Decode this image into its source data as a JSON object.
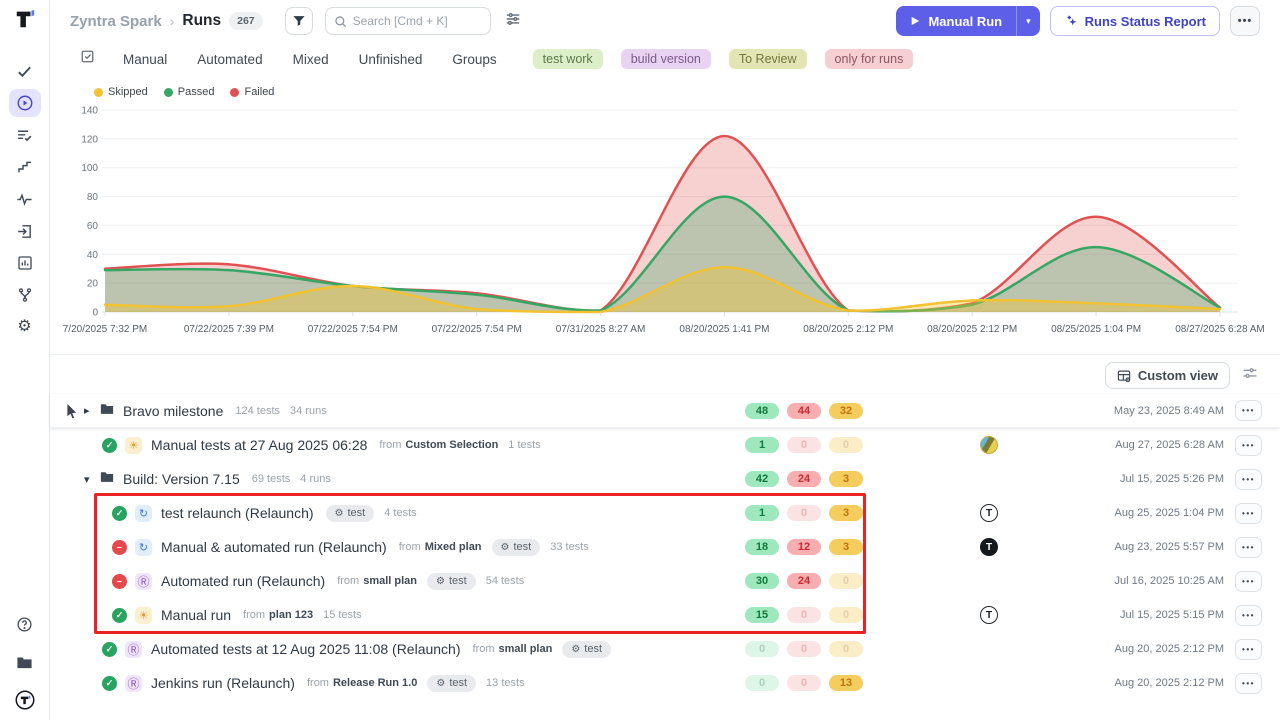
{
  "header": {
    "breadcrumb_project": "Zyntra Spark",
    "breadcrumb_sep": "›",
    "breadcrumb_page": "Runs",
    "count": "267",
    "search_placeholder": "Search [Cmd + K]",
    "manual_run_label": "Manual Run",
    "runs_status_report_label": "Runs Status Report",
    "more_label": "•••"
  },
  "filters": {
    "tabs": [
      "Manual",
      "Automated",
      "Mixed",
      "Unfinished",
      "Groups"
    ],
    "tags": [
      {
        "label": "test work",
        "bg": "#dcefc8",
        "fg": "#5a7a4a"
      },
      {
        "label": "build version",
        "bg": "#e9d3f2",
        "fg": "#7a5a8a"
      },
      {
        "label": "To Review",
        "bg": "#e3e6b4",
        "fg": "#73763d"
      },
      {
        "label": "only for runs",
        "bg": "#f6cfd3",
        "fg": "#8e565e"
      }
    ]
  },
  "chart_data": {
    "type": "area",
    "x_labels": [
      "7/20/2025 7:32 PM",
      "07/22/2025 7:39 PM",
      "07/22/2025 7:54 PM",
      "07/22/2025 7:54 PM",
      "07/31/2025 8:27 AM",
      "08/20/2025 1:41 PM",
      "08/20/2025 2:12 PM",
      "08/20/2025 2:12 PM",
      "08/25/2025 1:04 PM",
      "08/27/2025 6:28 AM"
    ],
    "series": [
      {
        "name": "Failed",
        "color": "#e05252",
        "fill_opacity": 0.27,
        "values": [
          30,
          33,
          18,
          13,
          1,
          122,
          1,
          6,
          66,
          3
        ]
      },
      {
        "name": "Passed",
        "color": "#34a765",
        "fill_opacity": 0.3,
        "values": [
          29,
          29,
          18,
          12,
          1,
          80,
          1,
          5,
          45,
          3
        ]
      },
      {
        "name": "Skipped",
        "color": "#f2c230",
        "fill_opacity": 0.38,
        "values": [
          5,
          4,
          18,
          2,
          0,
          31,
          1,
          8,
          6,
          2
        ]
      }
    ],
    "legend": [
      {
        "label": "Skipped",
        "color": "#f2c230"
      },
      {
        "label": "Passed",
        "color": "#34a765"
      },
      {
        "label": "Failed",
        "color": "#e05252"
      }
    ],
    "ylim": [
      0,
      140
    ],
    "yticks": [
      0,
      20,
      40,
      60,
      80,
      100,
      120,
      140
    ],
    "grid": true,
    "legend_position": "top-left"
  },
  "toolbar": {
    "custom_view_label": "Custom view"
  },
  "table": {
    "rows": [
      {
        "kind": "folder",
        "expander": "collapsed",
        "cursor": true,
        "hover": true,
        "title": "Bravo milestone",
        "tests_meta": "124 tests",
        "runs_meta": "34 runs",
        "badges": [
          {
            "tone": "green",
            "value": "48",
            "solid": true
          },
          {
            "tone": "red",
            "value": "44",
            "solid": true
          },
          {
            "tone": "yellow",
            "value": "32",
            "solid": true
          }
        ],
        "date": "May 23, 2025 8:49 AM"
      },
      {
        "kind": "run",
        "status": "passed",
        "run_type": "manual",
        "title": "Manual tests at 27 Aug 2025 06:28",
        "from": "Custom Selection",
        "tests_text": "1 tests",
        "badges": [
          {
            "tone": "green",
            "value": "1",
            "solid": true
          },
          {
            "tone": "red",
            "value": "0",
            "solid": false
          },
          {
            "tone": "yellow",
            "value": "0",
            "solid": false
          }
        ],
        "avatar": "photo",
        "date": "Aug 27, 2025 6:28 AM"
      },
      {
        "kind": "folder",
        "expander": "expanded",
        "title": "Build: Version 7.15",
        "tests_meta": "69 tests",
        "runs_meta": "4 runs",
        "badges": [
          {
            "tone": "green",
            "value": "42",
            "solid": true
          },
          {
            "tone": "red",
            "value": "24",
            "solid": true
          },
          {
            "tone": "yellow",
            "value": "3",
            "solid": true
          }
        ],
        "date": "Jul 15, 2025 5:26 PM"
      },
      {
        "kind": "run",
        "indent": true,
        "status": "passed",
        "run_type": "mixed",
        "title": "test relaunch (Relaunch)",
        "tag": "test",
        "tests_text": "4 tests",
        "badges": [
          {
            "tone": "green",
            "value": "1",
            "solid": true
          },
          {
            "tone": "red",
            "value": "0",
            "solid": false
          },
          {
            "tone": "yellow",
            "value": "3",
            "solid": true
          }
        ],
        "avatar": "t-light",
        "date": "Aug 25, 2025 1:04 PM"
      },
      {
        "kind": "run",
        "indent": true,
        "status": "failed",
        "run_type": "mixed",
        "title": "Manual & automated run (Relaunch)",
        "from": "Mixed plan",
        "tag": "test",
        "tests_text": "33 tests",
        "badges": [
          {
            "tone": "green",
            "value": "18",
            "solid": true
          },
          {
            "tone": "red",
            "value": "12",
            "solid": true
          },
          {
            "tone": "yellow",
            "value": "3",
            "solid": true
          }
        ],
        "avatar": "t-dark",
        "date": "Aug 23, 2025 5:57 PM"
      },
      {
        "kind": "run",
        "indent": true,
        "status": "failed",
        "run_type": "automated",
        "title": "Automated run (Relaunch)",
        "from": "small plan",
        "tag": "test",
        "tests_text": "54 tests",
        "badges": [
          {
            "tone": "green",
            "value": "30",
            "solid": true
          },
          {
            "tone": "red",
            "value": "24",
            "solid": true
          },
          {
            "tone": "yellow",
            "value": "0",
            "solid": false
          }
        ],
        "date": "Jul 16, 2025 10:25 AM"
      },
      {
        "kind": "run",
        "indent": true,
        "status": "passed",
        "run_type": "manual",
        "title": "Manual run",
        "from": "plan 123",
        "tests_text": "15 tests",
        "badges": [
          {
            "tone": "green",
            "value": "15",
            "solid": true
          },
          {
            "tone": "red",
            "value": "0",
            "solid": false
          },
          {
            "tone": "yellow",
            "value": "0",
            "solid": false
          }
        ],
        "avatar": "t-light",
        "date": "Jul 15, 2025 5:15 PM"
      },
      {
        "kind": "run",
        "status": "passed",
        "run_type": "automated",
        "title": "Automated tests at 12 Aug 2025 11:08 (Relaunch)",
        "from": "small plan",
        "tag": "test",
        "badges": [
          {
            "tone": "green",
            "value": "0",
            "solid": false
          },
          {
            "tone": "red",
            "value": "0",
            "solid": false
          },
          {
            "tone": "yellow",
            "value": "0",
            "solid": false
          }
        ],
        "date": "Aug 20, 2025 2:12 PM"
      },
      {
        "kind": "run",
        "status": "passed",
        "run_type": "automated",
        "title": "Jenkins run (Relaunch)",
        "from": "Release Run 1.0",
        "tag": "test",
        "tests_text": "13 tests",
        "badges": [
          {
            "tone": "green",
            "value": "0",
            "solid": false
          },
          {
            "tone": "red",
            "value": "0",
            "solid": false
          },
          {
            "tone": "yellow",
            "value": "13",
            "solid": true
          }
        ],
        "date": "Aug 20, 2025 2:12 PM"
      }
    ],
    "from_label": "from",
    "annotation": {
      "type": "highlight-box",
      "color": "#ec2227"
    }
  }
}
